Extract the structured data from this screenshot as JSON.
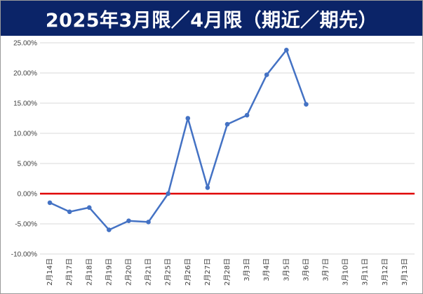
{
  "title": "2025年3月限／4月限（期近／期先）",
  "colors": {
    "title_bg": "#0b2468",
    "line": "#4472c4",
    "zero_line": "#e00000",
    "grid": "#d9d9d9"
  },
  "chart_data": {
    "type": "line",
    "categories": [
      "2月14日",
      "2月17日",
      "2月18日",
      "2月19日",
      "2月20日",
      "2月21日",
      "2月25日",
      "2月26日",
      "2月27日",
      "2月28日",
      "3月3日",
      "3月4日",
      "3月5日",
      "3月6日",
      "3月7日",
      "3月10日",
      "3月11日",
      "3月12日",
      "3月13日"
    ],
    "series": [
      {
        "values": [
          -1.5,
          -3.0,
          -2.3,
          -6.0,
          -4.5,
          -4.7,
          0.0,
          12.5,
          1.0,
          11.5,
          13.0,
          19.7,
          23.8,
          14.8,
          null,
          null,
          null,
          null,
          null
        ]
      }
    ],
    "y_ticks": [
      "25.00%",
      "20.00%",
      "15.00%",
      "10.00%",
      "5.00%",
      "0.00%",
      "-5.00%",
      "-10.00%"
    ],
    "ylim": [
      -10,
      25
    ],
    "y_unit": "percent",
    "grid": true,
    "reference_line": 0
  }
}
